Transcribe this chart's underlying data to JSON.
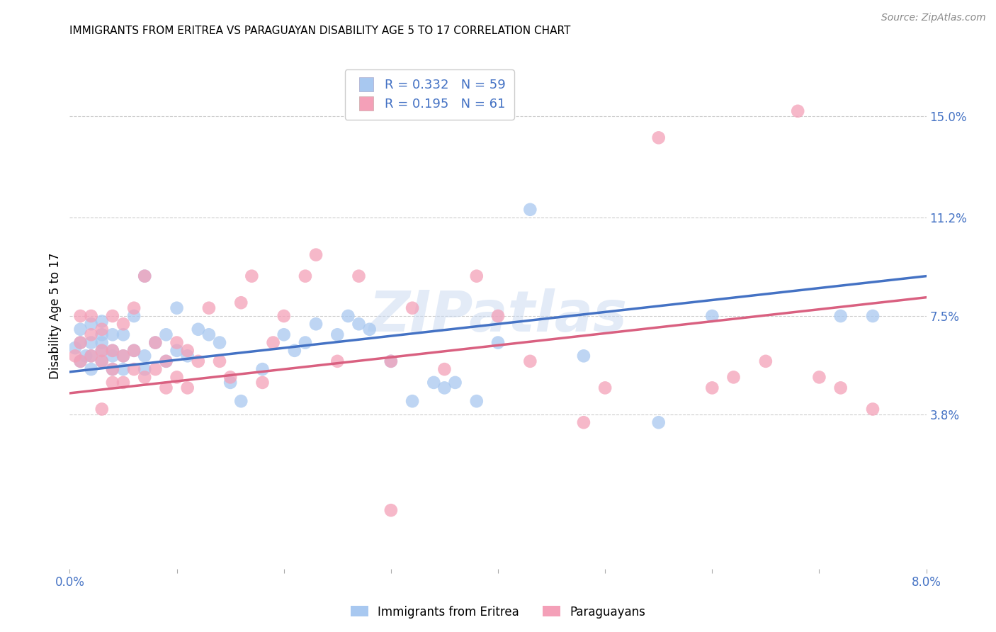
{
  "title": "IMMIGRANTS FROM ERITREA VS PARAGUAYAN DISABILITY AGE 5 TO 17 CORRELATION CHART",
  "source": "Source: ZipAtlas.com",
  "ylabel": "Disability Age 5 to 17",
  "xlim": [
    0.0,
    0.08
  ],
  "ylim": [
    -0.02,
    0.17
  ],
  "yticks_right": [
    0.038,
    0.075,
    0.112,
    0.15
  ],
  "yticklabels_right": [
    "3.8%",
    "7.5%",
    "11.2%",
    "15.0%"
  ],
  "legend_R1": "0.332",
  "legend_N1": "59",
  "legend_R2": "0.195",
  "legend_N2": "61",
  "color_blue": "#A8C8F0",
  "color_pink": "#F4A0B8",
  "color_blue_line": "#4472C4",
  "color_pink_line": "#D96080",
  "watermark": "ZIPatlas",
  "blue_x": [
    0.0005,
    0.001,
    0.001,
    0.001,
    0.0015,
    0.002,
    0.002,
    0.002,
    0.002,
    0.003,
    0.003,
    0.003,
    0.003,
    0.003,
    0.004,
    0.004,
    0.004,
    0.004,
    0.005,
    0.005,
    0.005,
    0.006,
    0.006,
    0.007,
    0.007,
    0.007,
    0.008,
    0.009,
    0.009,
    0.01,
    0.01,
    0.011,
    0.012,
    0.013,
    0.014,
    0.015,
    0.016,
    0.018,
    0.02,
    0.021,
    0.022,
    0.023,
    0.025,
    0.026,
    0.027,
    0.028,
    0.03,
    0.032,
    0.034,
    0.035,
    0.036,
    0.038,
    0.04,
    0.043,
    0.048,
    0.055,
    0.06,
    0.072,
    0.075
  ],
  "blue_y": [
    0.063,
    0.058,
    0.065,
    0.07,
    0.06,
    0.055,
    0.06,
    0.065,
    0.072,
    0.058,
    0.062,
    0.065,
    0.068,
    0.073,
    0.055,
    0.06,
    0.062,
    0.068,
    0.055,
    0.06,
    0.068,
    0.062,
    0.075,
    0.055,
    0.06,
    0.09,
    0.065,
    0.058,
    0.068,
    0.062,
    0.078,
    0.06,
    0.07,
    0.068,
    0.065,
    0.05,
    0.043,
    0.055,
    0.068,
    0.062,
    0.065,
    0.072,
    0.068,
    0.075,
    0.072,
    0.07,
    0.058,
    0.043,
    0.05,
    0.048,
    0.05,
    0.043,
    0.065,
    0.115,
    0.06,
    0.035,
    0.075,
    0.075,
    0.075
  ],
  "pink_x": [
    0.0005,
    0.001,
    0.001,
    0.001,
    0.002,
    0.002,
    0.002,
    0.003,
    0.003,
    0.003,
    0.003,
    0.004,
    0.004,
    0.004,
    0.004,
    0.005,
    0.005,
    0.005,
    0.006,
    0.006,
    0.006,
    0.007,
    0.007,
    0.008,
    0.008,
    0.009,
    0.009,
    0.01,
    0.01,
    0.011,
    0.011,
    0.012,
    0.013,
    0.014,
    0.015,
    0.016,
    0.017,
    0.018,
    0.019,
    0.02,
    0.022,
    0.023,
    0.025,
    0.027,
    0.03,
    0.032,
    0.035,
    0.038,
    0.04,
    0.043,
    0.048,
    0.05,
    0.055,
    0.06,
    0.062,
    0.065,
    0.068,
    0.07,
    0.072,
    0.075,
    0.03
  ],
  "pink_y": [
    0.06,
    0.058,
    0.065,
    0.075,
    0.06,
    0.068,
    0.075,
    0.04,
    0.058,
    0.062,
    0.07,
    0.05,
    0.055,
    0.062,
    0.075,
    0.05,
    0.06,
    0.072,
    0.055,
    0.062,
    0.078,
    0.052,
    0.09,
    0.055,
    0.065,
    0.048,
    0.058,
    0.052,
    0.065,
    0.048,
    0.062,
    0.058,
    0.078,
    0.058,
    0.052,
    0.08,
    0.09,
    0.05,
    0.065,
    0.075,
    0.09,
    0.098,
    0.058,
    0.09,
    0.058,
    0.078,
    0.055,
    0.09,
    0.075,
    0.058,
    0.035,
    0.048,
    0.142,
    0.048,
    0.052,
    0.058,
    0.152,
    0.052,
    0.048,
    0.04,
    0.002
  ]
}
